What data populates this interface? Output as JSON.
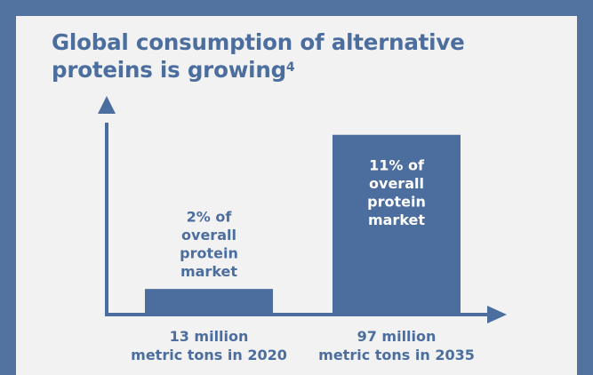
{
  "chart_data": {
    "type": "bar",
    "title": "Global consumption of alternative proteins is growing",
    "title_footnote": "4",
    "categories": [
      [
        "13 million",
        "metric tons in 2020"
      ],
      [
        "97 million",
        "metric tons in 2035"
      ]
    ],
    "values": [
      13,
      97
    ],
    "data_labels": [
      [
        "2% of",
        "overall",
        "protein",
        "market"
      ],
      [
        "11% of",
        "overall",
        "protein",
        "market"
      ]
    ],
    "ylim": [
      0,
      108
    ],
    "grid": false,
    "legend": "none",
    "colors": {
      "bar": "#4c6e9f",
      "axis": "#4c6e9f",
      "text": "#4c6e9f",
      "inner_label": "#ffffff",
      "frame": "#5272a0",
      "panel": "#f2f2f2"
    }
  }
}
